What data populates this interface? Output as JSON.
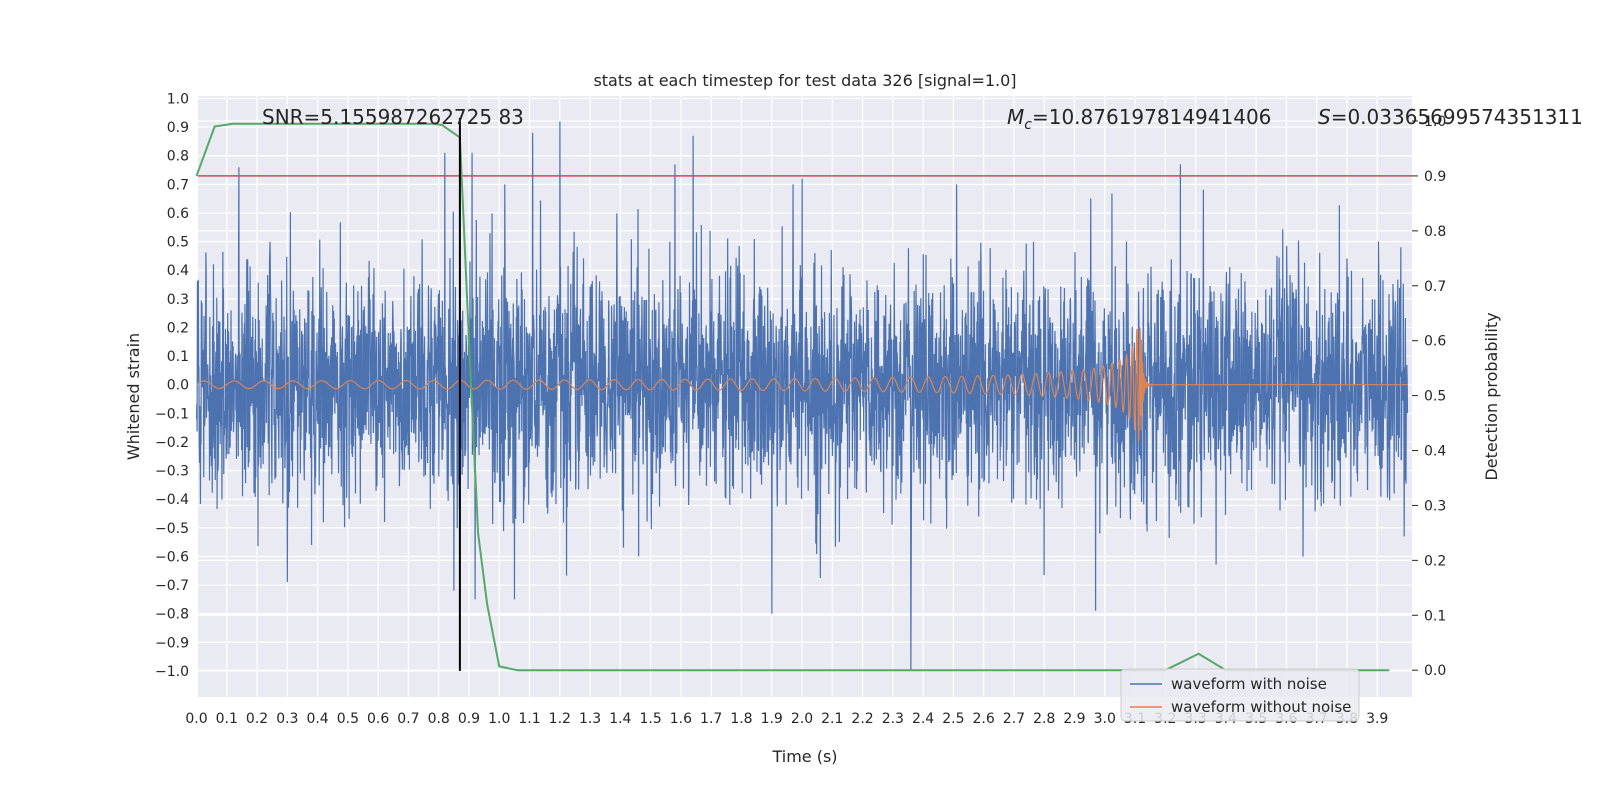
{
  "chart_data": {
    "type": "line",
    "title": "stats at each timestep for test data 326 [signal=1.0]",
    "xlabel": "Time (s)",
    "ylabel": "Whitened strain",
    "y2label": "Detection probability",
    "xlim": [
      0.0,
      4.0
    ],
    "ylim": [
      -1.09,
      1.01
    ],
    "y2lim": [
      -0.045,
      1.045
    ],
    "x_ticks": [
      "0.0",
      "0.1",
      "0.2",
      "0.3",
      "0.4",
      "0.5",
      "0.6",
      "0.7",
      "0.8",
      "0.9",
      "1.0",
      "1.1",
      "1.2",
      "1.3",
      "1.4",
      "1.5",
      "1.6",
      "1.7",
      "1.8",
      "1.9",
      "2.0",
      "2.1",
      "2.2",
      "2.3",
      "2.4",
      "2.5",
      "2.6",
      "2.7",
      "2.8",
      "2.9",
      "3.0",
      "3.1",
      "3.2",
      "3.3",
      "3.4",
      "3.5",
      "3.6",
      "3.7",
      "3.8",
      "3.9"
    ],
    "y_ticks": [
      "1.0",
      "0.9",
      "0.8",
      "0.7",
      "0.6",
      "0.5",
      "0.4",
      "0.3",
      "0.2",
      "0.1",
      "0.0",
      "-0.1",
      "-0.2",
      "-0.3",
      "-0.4",
      "-0.5",
      "-0.6",
      "-0.7",
      "-0.8",
      "-0.9",
      "-1.0"
    ],
    "y2_ticks": [
      "1.0",
      "0.9",
      "0.8",
      "0.7",
      "0.6",
      "0.5",
      "0.4",
      "0.3",
      "0.2",
      "0.1",
      "0.0"
    ],
    "grid": true,
    "annotations": {
      "snr": "SNR=5.155987262725 83",
      "mc_symbol": "M",
      "mc_sub": "c",
      "mc_value": "=10.876197814941406",
      "s_symbol": "S",
      "s_value": "=0.033656995743513​11"
    },
    "series": [
      {
        "name": "waveform with noise",
        "color": "#4c72b0",
        "axis": "left",
        "kind": "noise",
        "std": 0.2,
        "peaks": [
          {
            "x": 0.14,
            "y": 0.76
          },
          {
            "x": 0.82,
            "y": 0.81
          },
          {
            "x": 0.91,
            "y": 0.81
          },
          {
            "x": 1.11,
            "y": 0.88
          },
          {
            "x": 1.2,
            "y": 0.92
          },
          {
            "x": 1.58,
            "y": 0.77
          },
          {
            "x": 1.64,
            "y": 0.87
          },
          {
            "x": 1.97,
            "y": 0.7
          },
          {
            "x": 2.0,
            "y": 0.72
          },
          {
            "x": 3.25,
            "y": 0.77
          },
          {
            "x": 2.36,
            "y": -1.0
          },
          {
            "x": 1.9,
            "y": -0.8
          },
          {
            "x": 2.97,
            "y": -0.79
          },
          {
            "x": 0.85,
            "y": -0.72
          },
          {
            "x": 0.3,
            "y": -0.69
          },
          {
            "x": 0.92,
            "y": -0.75
          },
          {
            "x": 1.05,
            "y": -0.75
          }
        ]
      },
      {
        "name": "waveform without noise",
        "color": "#dd8452",
        "axis": "left",
        "kind": "chirp",
        "merger_time": 3.12,
        "peak_amplitude": 0.2
      },
      {
        "name": "detection probability",
        "color": "#55a868",
        "axis": "right",
        "x": [
          0.0,
          0.06,
          0.12,
          0.18,
          0.24,
          0.3,
          0.36,
          0.42,
          0.48,
          0.54,
          0.6,
          0.66,
          0.72,
          0.78,
          0.81,
          0.87,
          0.9,
          0.93,
          0.96,
          1.0,
          1.06,
          1.12,
          1.5,
          2.0,
          2.5,
          3.0,
          3.2,
          3.31,
          3.4,
          3.5,
          3.7,
          3.94
        ],
        "y": [
          0.9,
          0.99,
          0.995,
          0.995,
          0.995,
          0.995,
          0.995,
          0.995,
          0.995,
          0.995,
          0.995,
          0.995,
          0.995,
          0.995,
          0.993,
          0.97,
          0.6,
          0.25,
          0.12,
          0.007,
          0.0,
          0.0,
          0.0,
          0.0,
          0.0,
          0.0,
          0.0,
          0.03,
          0.0,
          0.0,
          0.0,
          0.0
        ]
      }
    ],
    "threshold": {
      "y": 0.9,
      "color": "#c44e52",
      "axis": "right"
    },
    "vline": {
      "x": 0.87,
      "color": "#000000"
    },
    "legend": {
      "placement": "lower-right",
      "entries": [
        {
          "label": "waveform with noise",
          "color": "#4c72b0"
        },
        {
          "label": "waveform without noise",
          "color": "#dd8452"
        }
      ]
    }
  }
}
